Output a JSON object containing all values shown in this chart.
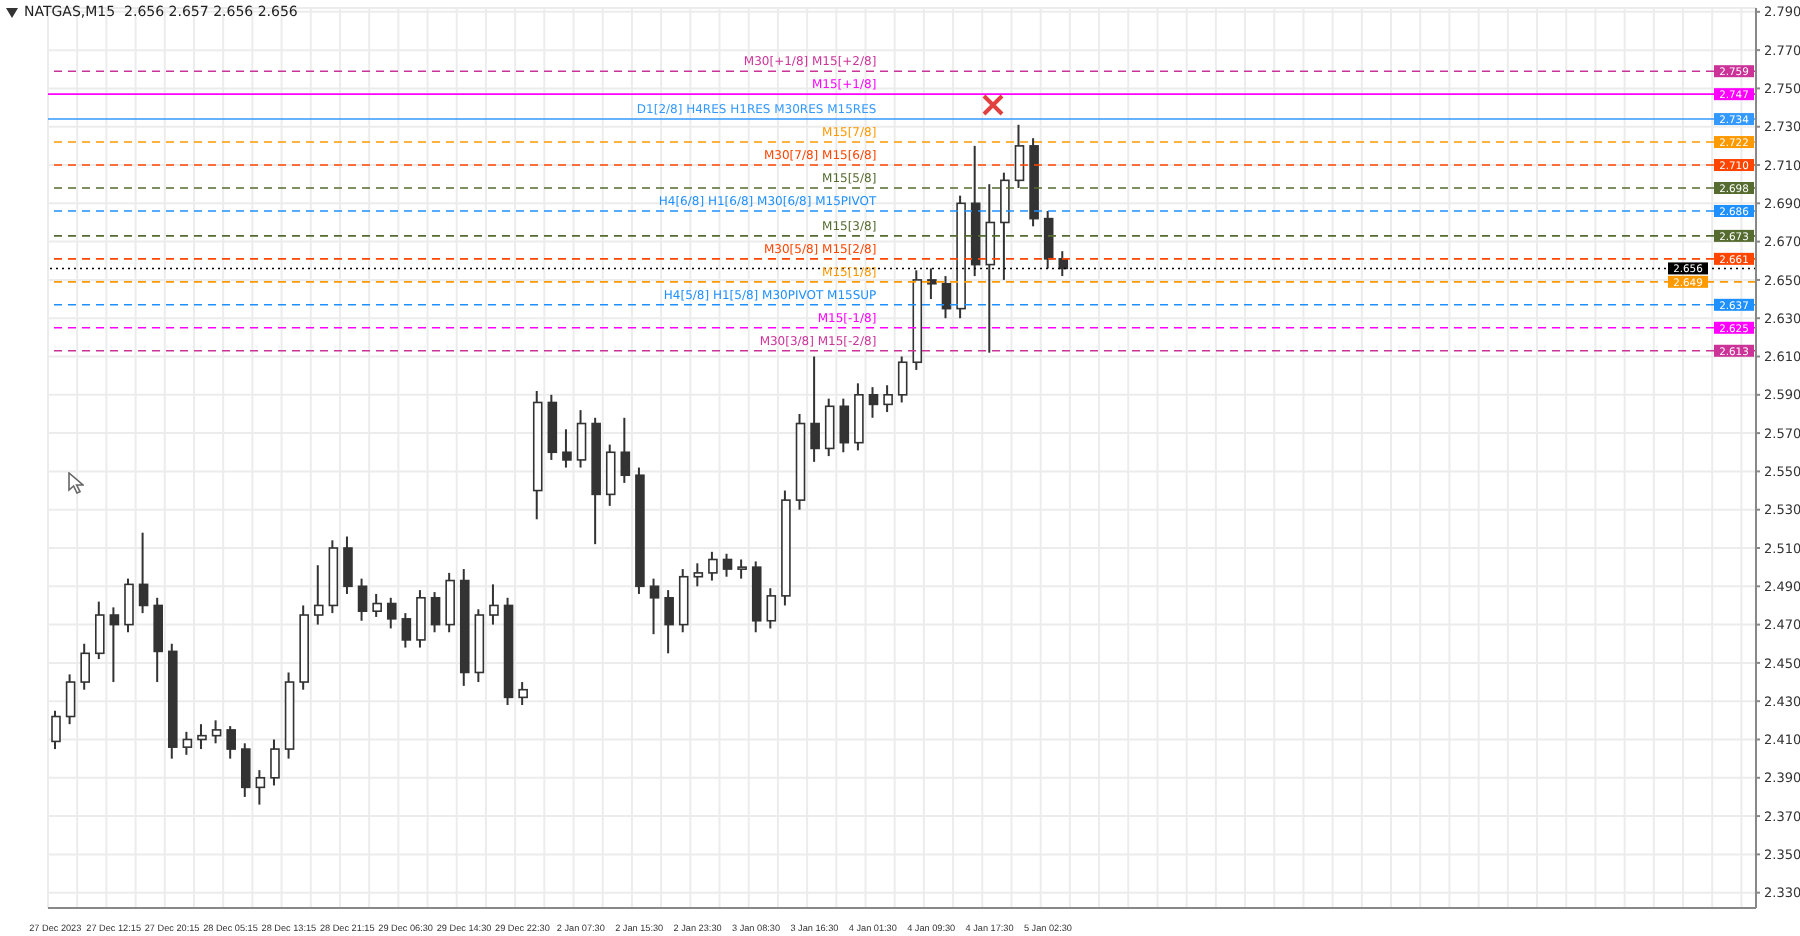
{
  "chart_data": {
    "type": "candlestick",
    "title": "NATGAS,M15  2.656 2.657 2.656 2.656",
    "color": "#333333",
    "grid": true,
    "categories": [
      "27 Dec 2023",
      null,
      null,
      null,
      "27 Dec 12:15",
      null,
      null,
      null,
      "27 Dec 20:15",
      null,
      null,
      null,
      "28 Dec 05:15",
      null,
      null,
      null,
      "28 Dec 13:15",
      null,
      null,
      null,
      "28 Dec 21:15",
      null,
      null,
      null,
      "29 Dec 06:30",
      null,
      null,
      null,
      "29 Dec 14:30",
      null,
      null,
      null,
      "29 Dec 22:30",
      null,
      null,
      null,
      "2 Jan 07:30",
      null,
      null,
      null,
      "2 Jan 15:30",
      null,
      null,
      null,
      "2 Jan 23:30",
      null,
      null,
      null,
      "3 Jan 08:30",
      null,
      null,
      null,
      "3 Jan 16:30",
      null,
      null,
      null,
      "4 Jan 01:30",
      null,
      null,
      null,
      "4 Jan 09:30",
      null,
      null,
      null,
      "4 Jan 17:30",
      null,
      null,
      null,
      "5 Jan 02:30",
      null,
      null,
      null,
      null,
      null,
      null,
      null,
      null,
      null,
      null,
      null,
      null,
      null,
      null,
      null,
      null,
      null,
      null,
      null,
      null,
      null,
      null,
      null,
      null,
      null,
      null,
      null,
      null,
      null,
      null,
      null,
      null,
      null,
      null,
      null,
      null,
      null,
      null,
      null,
      null,
      null,
      null,
      null,
      null,
      null,
      null,
      null,
      null
    ],
    "ohlc": [
      [
        2.409,
        2.425,
        2.405,
        2.422
      ],
      [
        2.422,
        2.444,
        2.418,
        2.44
      ],
      [
        2.44,
        2.46,
        2.436,
        2.455
      ],
      [
        2.455,
        2.482,
        2.452,
        2.475
      ],
      [
        2.475,
        2.479,
        2.44,
        2.47
      ],
      [
        2.47,
        2.494,
        2.466,
        2.491
      ],
      [
        2.491,
        2.518,
        2.476,
        2.48
      ],
      [
        2.48,
        2.484,
        2.44,
        2.456
      ],
      [
        2.456,
        2.46,
        2.4,
        2.406
      ],
      [
        2.406,
        2.414,
        2.402,
        2.41
      ],
      [
        2.41,
        2.418,
        2.405,
        2.412
      ],
      [
        2.412,
        2.42,
        2.408,
        2.415
      ],
      [
        2.415,
        2.417,
        2.4,
        2.405
      ],
      [
        2.405,
        2.408,
        2.38,
        2.385
      ],
      [
        2.385,
        2.394,
        2.376,
        2.39
      ],
      [
        2.39,
        2.41,
        2.386,
        2.405
      ],
      [
        2.405,
        2.445,
        2.4,
        2.44
      ],
      [
        2.44,
        2.48,
        2.436,
        2.475
      ],
      [
        2.475,
        2.501,
        2.47,
        2.48
      ],
      [
        2.48,
        2.514,
        2.476,
        2.51
      ],
      [
        2.51,
        2.516,
        2.486,
        2.49
      ],
      [
        2.49,
        2.494,
        2.472,
        2.477
      ],
      [
        2.477,
        2.486,
        2.474,
        2.481
      ],
      [
        2.481,
        2.484,
        2.468,
        2.473
      ],
      [
        2.473,
        2.476,
        2.458,
        2.462
      ],
      [
        2.462,
        2.488,
        2.458,
        2.484
      ],
      [
        2.484,
        2.487,
        2.466,
        2.47
      ],
      [
        2.47,
        2.497,
        2.466,
        2.493
      ],
      [
        2.493,
        2.499,
        2.438,
        2.445
      ],
      [
        2.445,
        2.478,
        2.44,
        2.475
      ],
      [
        2.475,
        2.491,
        2.47,
        2.48
      ],
      [
        2.48,
        2.484,
        2.428,
        2.432
      ],
      [
        2.432,
        2.44,
        2.428,
        2.436
      ],
      [
        2.54,
        2.592,
        2.525,
        2.586
      ],
      [
        2.586,
        2.59,
        2.556,
        2.56
      ],
      [
        2.56,
        2.572,
        2.552,
        2.556
      ],
      [
        2.556,
        2.582,
        2.552,
        2.575
      ],
      [
        2.575,
        2.578,
        2.512,
        2.538
      ],
      [
        2.538,
        2.564,
        2.532,
        2.56
      ],
      [
        2.56,
        2.578,
        2.544,
        2.548
      ],
      [
        2.548,
        2.552,
        2.486,
        2.49
      ],
      [
        2.49,
        2.494,
        2.465,
        2.484
      ],
      [
        2.484,
        2.488,
        2.455,
        2.47
      ],
      [
        2.47,
        2.499,
        2.466,
        2.495
      ],
      [
        2.495,
        2.502,
        2.49,
        2.497
      ],
      [
        2.497,
        2.508,
        2.493,
        2.504
      ],
      [
        2.504,
        2.507,
        2.495,
        2.499
      ],
      [
        2.499,
        2.504,
        2.494,
        2.5
      ],
      [
        2.5,
        2.503,
        2.466,
        2.472
      ],
      [
        2.472,
        2.489,
        2.468,
        2.485
      ],
      [
        2.485,
        2.54,
        2.48,
        2.535
      ],
      [
        2.535,
        2.58,
        2.53,
        2.575
      ],
      [
        2.575,
        2.61,
        2.555,
        2.562
      ],
      [
        2.562,
        2.588,
        2.558,
        2.584
      ],
      [
        2.584,
        2.588,
        2.56,
        2.565
      ],
      [
        2.565,
        2.596,
        2.561,
        2.59
      ],
      [
        2.59,
        2.594,
        2.578,
        2.585
      ],
      [
        2.585,
        2.595,
        2.581,
        2.59
      ],
      [
        2.59,
        2.61,
        2.586,
        2.607
      ],
      [
        2.607,
        2.655,
        2.603,
        2.65
      ],
      [
        2.65,
        2.656,
        2.64,
        2.648
      ],
      [
        2.648,
        2.652,
        2.63,
        2.635
      ],
      [
        2.635,
        2.694,
        2.63,
        2.69
      ],
      [
        2.69,
        2.72,
        2.652,
        2.658
      ],
      [
        2.658,
        2.7,
        2.612,
        2.68
      ],
      [
        2.68,
        2.706,
        2.65,
        2.702
      ],
      [
        2.702,
        2.731,
        2.698,
        2.72
      ],
      [
        2.72,
        2.724,
        2.678,
        2.682
      ],
      [
        2.682,
        2.686,
        2.656,
        2.661
      ],
      [
        2.661,
        2.665,
        2.652,
        2.656
      ],
      null,
      null,
      null,
      null,
      null,
      null,
      null,
      null,
      null,
      null,
      null,
      null,
      null,
      null,
      null,
      null,
      null,
      null,
      null,
      null,
      null,
      null,
      null,
      null,
      null,
      null,
      null,
      null,
      null,
      null,
      null,
      null,
      null,
      null,
      null,
      null,
      null,
      null,
      null,
      null,
      null,
      null,
      null,
      null,
      null,
      null,
      null
    ],
    "ylim": [
      2.322,
      2.792
    ],
    "yticks": [
      {
        "value": 2.33,
        "label": "2.330"
      },
      {
        "value": 2.35,
        "label": "2.350"
      },
      {
        "value": 2.37,
        "label": "2.370"
      },
      {
        "value": 2.39,
        "label": "2.390"
      },
      {
        "value": 2.41,
        "label": "2.410"
      },
      {
        "value": 2.43,
        "label": "2.430"
      },
      {
        "value": 2.45,
        "label": "2.450"
      },
      {
        "value": 2.47,
        "label": "2.470"
      },
      {
        "value": 2.49,
        "label": "2.490"
      },
      {
        "value": 2.51,
        "label": "2.510"
      },
      {
        "value": 2.53,
        "label": "2.530"
      },
      {
        "value": 2.55,
        "label": "2.550"
      },
      {
        "value": 2.57,
        "label": "2.570"
      },
      {
        "value": 2.59,
        "label": "2.590"
      },
      {
        "value": 2.61,
        "label": "2.610"
      },
      {
        "value": 2.63,
        "label": "2.630"
      },
      {
        "value": 2.65,
        "label": "2.650"
      },
      {
        "value": 2.67,
        "label": "2.670"
      },
      {
        "value": 2.69,
        "label": "2.690"
      },
      {
        "value": 2.71,
        "label": "2.710"
      },
      {
        "value": 2.73,
        "label": "2.730"
      },
      {
        "value": 2.75,
        "label": "2.750"
      },
      {
        "value": 2.77,
        "label": "2.770"
      },
      {
        "value": 2.79,
        "label": "2.790"
      }
    ],
    "ref_lines": [
      {
        "axis": "y",
        "value": 2.759,
        "label": "2.759",
        "color": "#cc3399",
        "line_style": "dashed"
      },
      {
        "axis": "y",
        "value": 2.747,
        "label": "2.747",
        "color": "#ff00ff",
        "line_style": "solid"
      },
      {
        "axis": "y",
        "value": 2.734,
        "label": "2.734",
        "color": "#3399ff",
        "line_style": "solid"
      },
      {
        "axis": "y",
        "value": 2.722,
        "label": "2.722",
        "color": "#ff9900",
        "line_style": "dashed"
      },
      {
        "axis": "y",
        "value": 2.71,
        "label": "2.710",
        "color": "#ff4500",
        "line_style": "dashed"
      },
      {
        "axis": "y",
        "value": 2.698,
        "label": "2.698",
        "color": "#556b2f",
        "line_style": "dashed"
      },
      {
        "axis": "y",
        "value": 2.686,
        "label": "2.686",
        "color": "#1e90ff",
        "line_style": "dashed"
      },
      {
        "axis": "y",
        "value": 2.673,
        "label": "2.673",
        "color": "#556b2f",
        "line_style": "dashed"
      },
      {
        "axis": "y",
        "value": 2.661,
        "label": "2.661",
        "color": "#ff4500",
        "line_style": "dashed"
      },
      {
        "axis": "y",
        "value": 2.656,
        "label": "2.656",
        "color": "#000000",
        "line_style": "dotted"
      },
      {
        "axis": "y",
        "value": 2.649,
        "label": "2.649",
        "color": "#ff9900",
        "line_style": "dashed"
      },
      {
        "axis": "y",
        "value": 2.637,
        "label": "2.637",
        "color": "#1e90ff",
        "line_style": "dashed"
      },
      {
        "axis": "y",
        "value": 2.625,
        "label": "2.625",
        "color": "#ff00ff",
        "line_style": "dashed"
      },
      {
        "axis": "y",
        "value": 2.613,
        "label": "2.613",
        "color": "#cc3399",
        "line_style": "dashed"
      }
    ],
    "annotations": [
      {
        "text": "M30[+1/8] M15[+2/8]",
        "y": 2.759
      },
      {
        "text": "M15[+1/8]",
        "y": 2.747
      },
      {
        "text": "D1[2/8] H4RES H1RES M30RES M15RES",
        "y": 2.734
      },
      {
        "text": "M15[7/8]",
        "y": 2.722
      },
      {
        "text": "M30[7/8] M15[6/8]",
        "y": 2.71
      },
      {
        "text": "M15[5/8]",
        "y": 2.698
      },
      {
        "text": "H4[6/8] H1[6/8] M30[6/8] M15PIVOT",
        "y": 2.686
      },
      {
        "text": "M15[3/8]",
        "y": 2.673
      },
      {
        "text": "M30[5/8] M15[2/8]",
        "y": 2.661
      },
      {
        "text": "M15[1/8]",
        "y": 2.649
      },
      {
        "text": "H4[5/8] H1[5/8] M30PIVOT M15SUP",
        "y": 2.637
      },
      {
        "text": "M15[-1/8]",
        "y": 2.625
      },
      {
        "text": "M30[3/8] M15[-2/8]",
        "y": 2.613
      }
    ]
  }
}
